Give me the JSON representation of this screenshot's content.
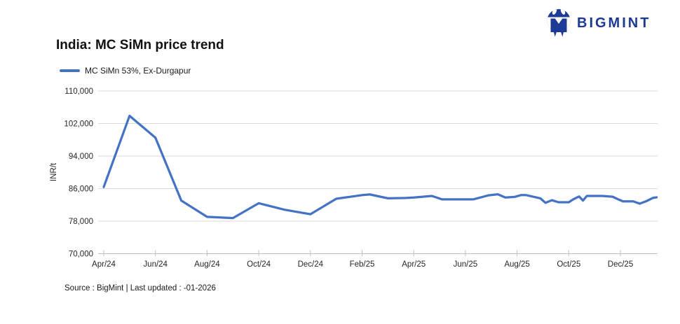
{
  "logo": {
    "brand": "BIGMINT",
    "icon": "bigmint-circle-m-icon",
    "color": "#1d3a94"
  },
  "title": "India: MC SiMn price trend",
  "legend": {
    "label": "MC SiMn 53%, Ex-Durgapur",
    "line_color": "#4472C4"
  },
  "source_note": "Source : BigMint | Last updated : -01-2026",
  "chart_data": {
    "type": "line",
    "title": "India: MC SiMn price trend",
    "xlabel": "",
    "ylabel": "INR/t",
    "ylim": [
      70000,
      110000
    ],
    "y_ticks": [
      70000,
      78000,
      86000,
      94000,
      102000,
      110000
    ],
    "x_ticks": [
      {
        "m": 0,
        "label": "Apr/24"
      },
      {
        "m": 2,
        "label": "Jun/24"
      },
      {
        "m": 4,
        "label": "Aug/24"
      },
      {
        "m": 6,
        "label": "Oct/24"
      },
      {
        "m": 8,
        "label": "Dec/24"
      },
      {
        "m": 10,
        "label": "Feb/25"
      },
      {
        "m": 12,
        "label": "Apr/25"
      },
      {
        "m": 14,
        "label": "Jun/25"
      },
      {
        "m": 16,
        "label": "Aug/25"
      },
      {
        "m": 18,
        "label": "Oct/25"
      },
      {
        "m": 20,
        "label": "Dec/25"
      }
    ],
    "x_unit": "months_since_Apr_2024",
    "grid": "horizontal",
    "legend_position": "top-left",
    "colors": {
      "line": "#4472C4",
      "gridline": "#D9D9D9",
      "axis": "#BFBFBF",
      "tick_text": "#262626"
    },
    "series": [
      {
        "name": "MC SiMn 53%, Ex-Durgapur",
        "color": "#4472C4",
        "points": [
          [
            0,
            86400
          ],
          [
            1,
            103900
          ],
          [
            2,
            98500
          ],
          [
            3,
            83050
          ],
          [
            4,
            79050
          ],
          [
            5,
            78750
          ],
          [
            6,
            82400
          ],
          [
            7,
            80800
          ],
          [
            8,
            79700
          ],
          [
            9,
            83500
          ],
          [
            10,
            84400
          ],
          [
            10.3,
            84550
          ],
          [
            11,
            83600
          ],
          [
            11.7,
            83700
          ],
          [
            12,
            83800
          ],
          [
            12.7,
            84200
          ],
          [
            13.1,
            83350
          ],
          [
            14.3,
            83350
          ],
          [
            14.9,
            84350
          ],
          [
            15.25,
            84600
          ],
          [
            15.55,
            83800
          ],
          [
            15.9,
            83950
          ],
          [
            16.15,
            84400
          ],
          [
            16.35,
            84400
          ],
          [
            16.9,
            83600
          ],
          [
            17.1,
            82500
          ],
          [
            17.35,
            83150
          ],
          [
            17.6,
            82650
          ],
          [
            18.0,
            82650
          ],
          [
            18.2,
            83450
          ],
          [
            18.4,
            84050
          ],
          [
            18.55,
            83050
          ],
          [
            18.7,
            84200
          ],
          [
            19.3,
            84200
          ],
          [
            19.7,
            84000
          ],
          [
            19.9,
            83400
          ],
          [
            20.1,
            82850
          ],
          [
            20.5,
            82850
          ],
          [
            20.75,
            82300
          ],
          [
            21.0,
            82900
          ],
          [
            21.25,
            83700
          ],
          [
            21.4,
            83850
          ]
        ]
      }
    ]
  }
}
